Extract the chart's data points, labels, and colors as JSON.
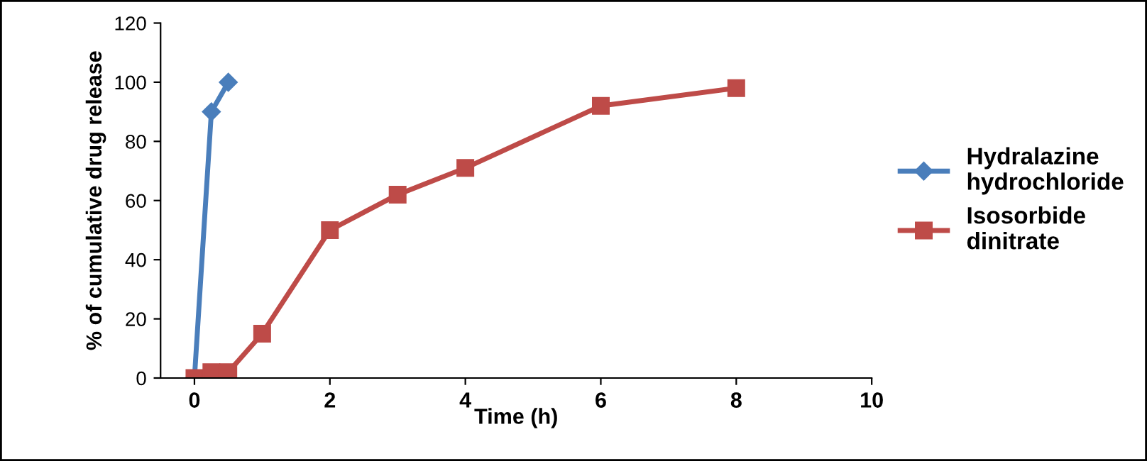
{
  "chart_data": {
    "type": "line",
    "xlabel": "Time (h)",
    "ylabel": "% of cumulative drug release",
    "series": [
      {
        "name": "Hydralazine hydrochloride",
        "color": "#4a7ebb",
        "marker": "diamond",
        "x": [
          0,
          0.25,
          0.5
        ],
        "values": [
          0,
          90,
          100
        ]
      },
      {
        "name": "Isosorbide dinitrate",
        "color": "#be4b48",
        "marker": "square",
        "x": [
          0,
          0.25,
          0.5,
          1,
          2,
          3,
          4,
          6,
          8
        ],
        "values": [
          0,
          2,
          2,
          15,
          50,
          62,
          71,
          92,
          98
        ]
      }
    ],
    "xlim": [
      -0.5,
      10
    ],
    "xticks": [
      0,
      2,
      4,
      6,
      8,
      10
    ],
    "ylim": [
      0,
      120
    ],
    "yticks": [
      0,
      20,
      40,
      60,
      80,
      100,
      120
    ],
    "grid": false,
    "legend": "right",
    "line_style": "solid"
  }
}
